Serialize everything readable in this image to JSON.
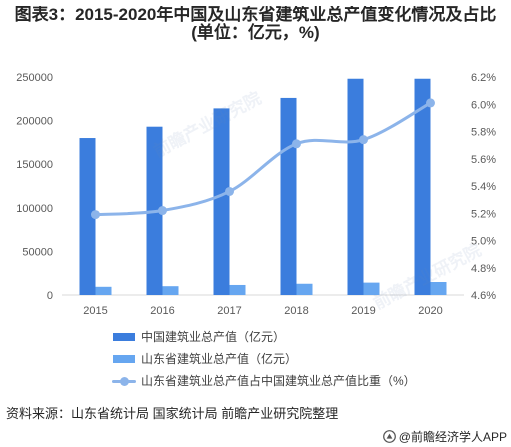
{
  "chart_data": {
    "type": "bar",
    "title": "图表3：2015-2020年中国及山东省建筑业总产值变化情况及占比",
    "subtitle": "(单位：亿元，%)",
    "categories": [
      "2015",
      "2016",
      "2017",
      "2018",
      "2019",
      "2020"
    ],
    "series": [
      {
        "name": "中国建筑业总产值（亿元）",
        "type": "bar",
        "axis": "left",
        "color": "#3b7ddd",
        "values": [
          180000,
          193000,
          214000,
          226000,
          248000,
          248000
        ]
      },
      {
        "name": "山东省建筑业总产值（亿元）",
        "type": "bar",
        "axis": "left",
        "color": "#66a6f0",
        "values": [
          9400,
          10100,
          11500,
          12900,
          14200,
          14900
        ]
      },
      {
        "name": "山东省建筑业总产值占中国建筑业总产值比重（%）",
        "type": "line",
        "axis": "right",
        "color": "#8cb4ea",
        "values": [
          5.19,
          5.22,
          5.36,
          5.71,
          5.74,
          6.01
        ]
      }
    ],
    "ylim": [
      0,
      250000
    ],
    "y_ticks": [
      0,
      50000,
      100000,
      150000,
      200000,
      250000
    ],
    "y2lim": [
      4.6,
      6.2
    ],
    "y2_ticks": [
      4.6,
      4.8,
      5.0,
      5.2,
      5.4,
      5.6,
      5.8,
      6.0,
      6.2
    ],
    "y2_tick_suffix": "%",
    "xlabel": "",
    "ylabel": "",
    "grid": false,
    "legend_position": "bottom"
  },
  "source": "资料来源：山东省统计局 国家统计局 前瞻产业研究院整理",
  "credit": "@前瞻经济学人APP",
  "watermark": "前瞻产业研究院"
}
